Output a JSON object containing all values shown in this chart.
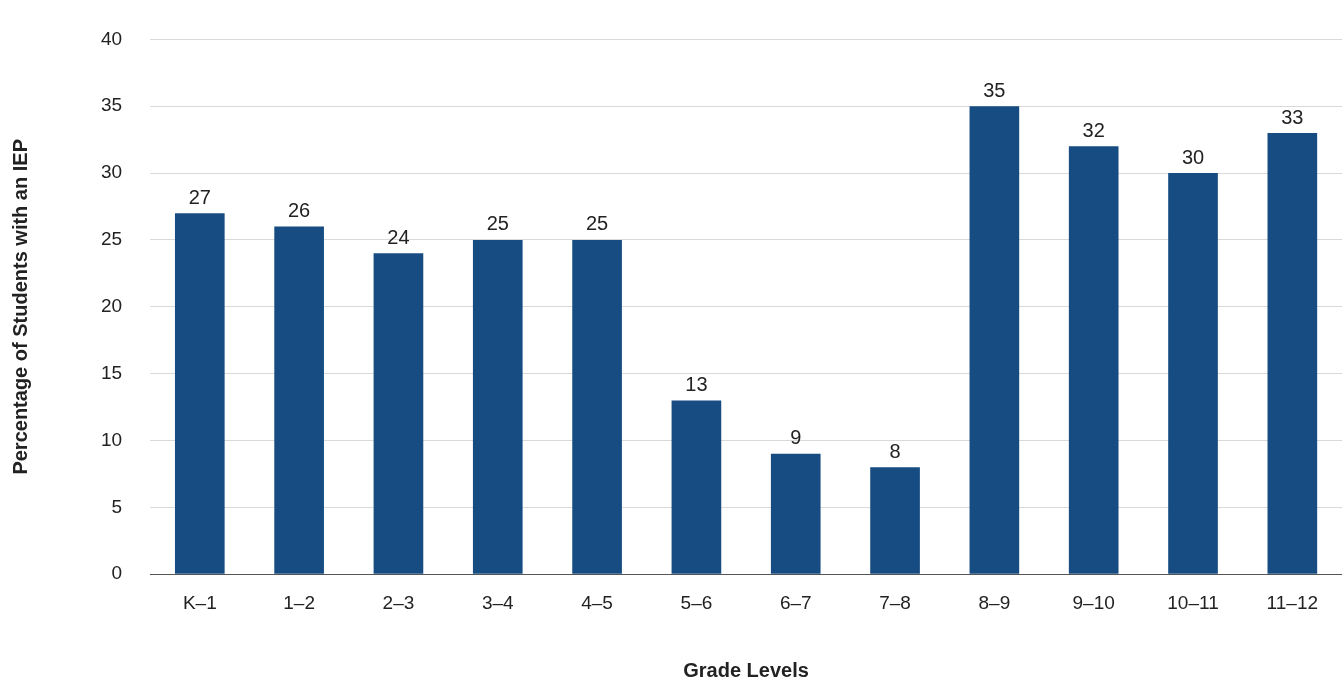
{
  "chart_data": {
    "type": "bar",
    "xlabel": "Grade Levels",
    "ylabel": "Percentage of Students with an IEP",
    "categories": [
      "K–1",
      "1–2",
      "2–3",
      "3–4",
      "4–5",
      "5–6",
      "6–7",
      "7–8",
      "8–9",
      "9–10",
      "10–11",
      "11–12"
    ],
    "values": [
      27,
      26,
      24,
      25,
      25,
      13,
      9,
      8,
      35,
      32,
      30,
      33
    ],
    "color": "#164c82",
    "ylim": [
      0,
      40
    ],
    "yticks": [
      0,
      5,
      10,
      15,
      20,
      25,
      30,
      35,
      40
    ],
    "grid": "y",
    "legend": false,
    "data_labels": true
  }
}
